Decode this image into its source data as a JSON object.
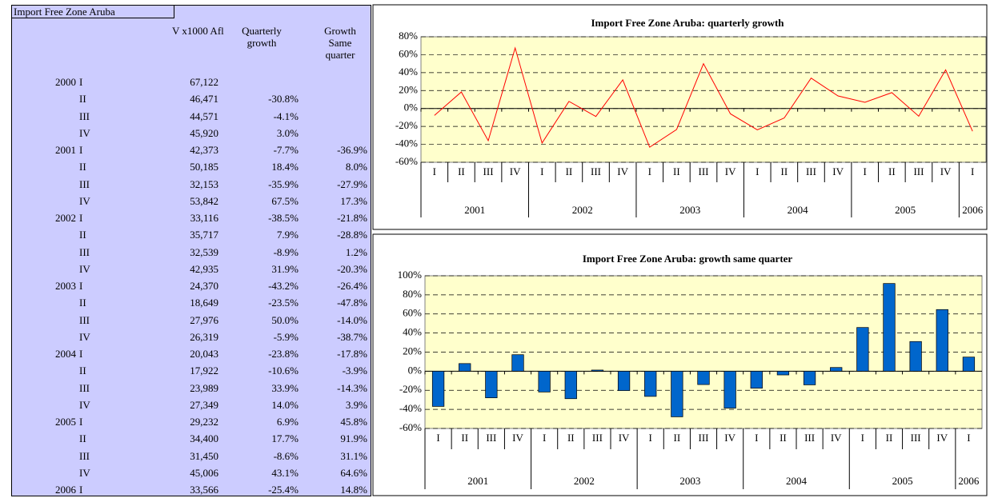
{
  "table": {
    "title": "Import Free Zone Aruba",
    "columns": [
      "V x1000 Afl",
      "Quarterly growth",
      "Growth Same quarter"
    ],
    "rows": [
      [
        "2000",
        "I",
        "67,122",
        null,
        null
      ],
      [
        null,
        "II",
        "46,471",
        "-30.8%",
        null
      ],
      [
        null,
        "III",
        "44,571",
        "-4.1%",
        null
      ],
      [
        null,
        "IV",
        "45,920",
        "3.0%",
        null
      ],
      [
        "2001",
        "I",
        "42,373",
        "-7.7%",
        "-36.9%"
      ],
      [
        null,
        "II",
        "50,185",
        "18.4%",
        "8.0%"
      ],
      [
        null,
        "III",
        "32,153",
        "-35.9%",
        "-27.9%"
      ],
      [
        null,
        "IV",
        "53,842",
        "67.5%",
        "17.3%"
      ],
      [
        "2002",
        "I",
        "33,116",
        "-38.5%",
        "-21.8%"
      ],
      [
        null,
        "II",
        "35,717",
        "7.9%",
        "-28.8%"
      ],
      [
        null,
        "III",
        "32,539",
        "-8.9%",
        "1.2%"
      ],
      [
        null,
        "IV",
        "42,935",
        "31.9%",
        "-20.3%"
      ],
      [
        "2003",
        "I",
        "24,370",
        "-43.2%",
        "-26.4%"
      ],
      [
        null,
        "II",
        "18,649",
        "-23.5%",
        "-47.8%"
      ],
      [
        null,
        "III",
        "27,976",
        "50.0%",
        "-14.0%"
      ],
      [
        null,
        "IV",
        "26,319",
        "-5.9%",
        "-38.7%"
      ],
      [
        "2004",
        "I",
        "20,043",
        "-23.8%",
        "-17.8%"
      ],
      [
        null,
        "II",
        "17,922",
        "-10.6%",
        "-3.9%"
      ],
      [
        null,
        "III",
        "23,989",
        "33.9%",
        "-14.3%"
      ],
      [
        null,
        "IV",
        "27,349",
        "14.0%",
        "3.9%"
      ],
      [
        "2005",
        "I",
        "29,232",
        "6.9%",
        "45.8%"
      ],
      [
        null,
        "II",
        "34,400",
        "17.7%",
        "91.9%"
      ],
      [
        null,
        "III",
        "31,450",
        "-8.6%",
        "31.1%"
      ],
      [
        null,
        "IV",
        "45,006",
        "43.1%",
        "64.6%"
      ],
      [
        "2006",
        "I",
        "33,566",
        "-25.4%",
        "14.8%"
      ]
    ]
  },
  "chart_data": [
    {
      "type": "line",
      "title": "Import Free Zone Aruba: quarterly growth",
      "color": "#ff0000",
      "grid": true,
      "categories": [
        "I",
        "II",
        "III",
        "IV",
        "I",
        "II",
        "III",
        "IV",
        "I",
        "II",
        "III",
        "IV",
        "I",
        "II",
        "III",
        "IV",
        "I",
        "II",
        "III",
        "IV",
        "I"
      ],
      "year_groups": [
        "2001",
        "2002",
        "2003",
        "2004",
        "2005",
        "2006"
      ],
      "values": [
        -7.7,
        18.4,
        -35.9,
        67.5,
        -38.5,
        7.9,
        -8.9,
        31.9,
        -43.2,
        -23.5,
        50.0,
        -5.9,
        -23.8,
        -10.6,
        33.9,
        14.0,
        6.9,
        17.7,
        -8.6,
        43.1,
        -25.4
      ],
      "ylim": [
        -60,
        80
      ],
      "yticks": [
        {
          "value": -60,
          "label": "-60%"
        },
        {
          "value": -40,
          "label": "-40%"
        },
        {
          "value": -20,
          "label": "-20%"
        },
        {
          "value": 0,
          "label": "0%"
        },
        {
          "value": 20,
          "label": "20%"
        },
        {
          "value": 40,
          "label": "40%"
        },
        {
          "value": 60,
          "label": "60%"
        },
        {
          "value": 80,
          "label": "80%"
        }
      ]
    },
    {
      "type": "bar",
      "title": "Import Free Zone Aruba: growth same quarter",
      "color": "#0066cc",
      "grid": true,
      "categories": [
        "I",
        "II",
        "III",
        "IV",
        "I",
        "II",
        "III",
        "IV",
        "I",
        "II",
        "III",
        "IV",
        "I",
        "II",
        "III",
        "IV",
        "I",
        "II",
        "III",
        "IV",
        "I"
      ],
      "year_groups": [
        "2001",
        "2002",
        "2003",
        "2004",
        "2005",
        "2006"
      ],
      "values": [
        -36.9,
        8.0,
        -27.9,
        17.3,
        -21.8,
        -28.8,
        1.2,
        -20.3,
        -26.4,
        -47.8,
        -14.0,
        -38.7,
        -17.8,
        -3.9,
        -14.3,
        3.9,
        45.8,
        91.9,
        31.1,
        64.6,
        14.8
      ],
      "ylim": [
        -60,
        100
      ],
      "yticks": [
        {
          "value": -60,
          "label": "-60%"
        },
        {
          "value": -40,
          "label": "-40%"
        },
        {
          "value": -20,
          "label": "-20%"
        },
        {
          "value": 0,
          "label": "0%"
        },
        {
          "value": 20,
          "label": "20%"
        },
        {
          "value": 40,
          "label": "40%"
        },
        {
          "value": 60,
          "label": "60%"
        },
        {
          "value": 80,
          "label": "80%"
        },
        {
          "value": 100,
          "label": "100%"
        }
      ]
    }
  ]
}
